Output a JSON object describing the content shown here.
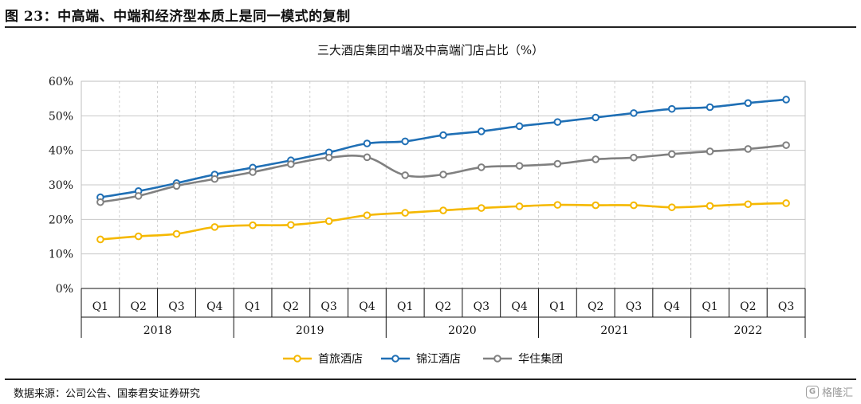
{
  "figure": {
    "title": "图 23：中高端、中端和经济型本质上是同一模式的复制",
    "source": "数据来源：公司公告、国泰君安证券研究",
    "watermark": "格隆汇",
    "watermark_icon": "g-logo-icon"
  },
  "chart_data": {
    "type": "line",
    "title": "三大酒店集团中端及中高端门店占比（%）",
    "xlabel": "",
    "ylabel": "",
    "quarters": [
      "Q1",
      "Q2",
      "Q3",
      "Q4",
      "Q1",
      "Q2",
      "Q3",
      "Q4",
      "Q1",
      "Q2",
      "Q3",
      "Q4",
      "Q1",
      "Q2",
      "Q3",
      "Q4",
      "Q1",
      "Q2",
      "Q3"
    ],
    "years": [
      "2018",
      "2019",
      "2020",
      "2021",
      "2022"
    ],
    "yticks": [
      "0%",
      "10%",
      "20%",
      "30%",
      "40%",
      "50%",
      "60%"
    ],
    "ylim": [
      0,
      60
    ],
    "grid": true,
    "legend_position": "bottom",
    "series": [
      {
        "name": "首旅酒店",
        "color": "#F5B800",
        "values": [
          14.2,
          15.1,
          15.8,
          17.8,
          18.3,
          18.4,
          19.5,
          21.2,
          21.9,
          22.6,
          23.3,
          23.8,
          24.2,
          24.1,
          24.1,
          23.5,
          23.9,
          24.4,
          24.7
        ]
      },
      {
        "name": "锦江酒店",
        "color": "#1F6FB5",
        "values": [
          26.4,
          28.2,
          30.5,
          33.0,
          35.0,
          37.1,
          39.4,
          42.0,
          42.6,
          44.4,
          45.5,
          47.0,
          48.2,
          49.5,
          50.8,
          52.0,
          52.5,
          53.7,
          54.7
        ]
      },
      {
        "name": "华住集团",
        "color": "#808080",
        "values": [
          25.0,
          26.8,
          29.7,
          31.7,
          33.7,
          36.0,
          37.9,
          38.0,
          32.8,
          33.0,
          35.1,
          35.5,
          36.1,
          37.4,
          37.9,
          38.9,
          39.7,
          40.4,
          41.5
        ]
      }
    ]
  }
}
